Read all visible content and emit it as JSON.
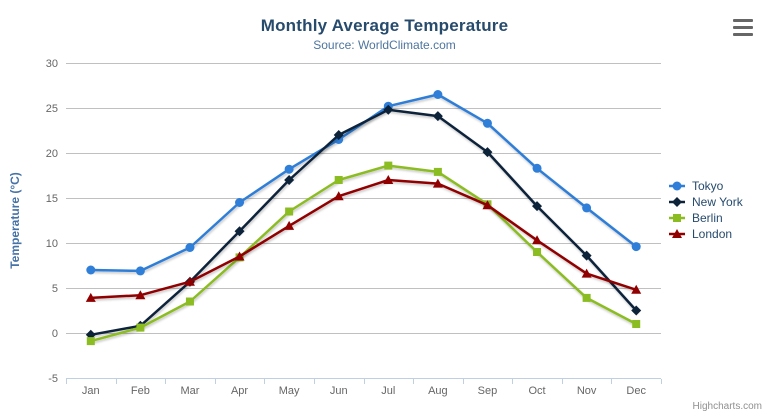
{
  "chart": {
    "title": "Monthly Average Temperature",
    "subtitle": "Source: WorldClimate.com",
    "credits": "Highcharts.com",
    "context_menu_icon": "hamburger-icon"
  },
  "chart_data": {
    "type": "line",
    "title": "Monthly Average Temperature",
    "subtitle": "Source: WorldClimate.com",
    "categories": [
      "Jan",
      "Feb",
      "Mar",
      "Apr",
      "May",
      "Jun",
      "Jul",
      "Aug",
      "Sep",
      "Oct",
      "Nov",
      "Dec"
    ],
    "series": [
      {
        "name": "Tokyo",
        "color": "#2f7ed8",
        "marker": "circle",
        "values": [
          7.0,
          6.9,
          9.5,
          14.5,
          18.2,
          21.5,
          25.2,
          26.5,
          23.3,
          18.3,
          13.9,
          9.6
        ]
      },
      {
        "name": "New York",
        "color": "#0d233a",
        "marker": "diamond",
        "values": [
          -0.2,
          0.8,
          5.7,
          11.3,
          17.0,
          22.0,
          24.8,
          24.1,
          20.1,
          14.1,
          8.6,
          2.5
        ]
      },
      {
        "name": "Berlin",
        "color": "#8bbc21",
        "marker": "square",
        "values": [
          -0.9,
          0.6,
          3.5,
          8.4,
          13.5,
          17.0,
          18.6,
          17.9,
          14.3,
          9.0,
          3.9,
          1.0
        ]
      },
      {
        "name": "London",
        "color": "#910000",
        "marker": "triangle",
        "values": [
          3.9,
          4.2,
          5.7,
          8.5,
          11.9,
          15.2,
          17.0,
          16.6,
          14.2,
          10.3,
          6.6,
          4.8
        ]
      }
    ],
    "xlabel": "",
    "ylabel": "Temperature (°C)",
    "ylim": [
      -5,
      30
    ],
    "ytick_step": 5,
    "grid": true,
    "legend_position": "right",
    "styles": {
      "grid_color": "#c0c0c0",
      "axis_line_color": "#c0d0e0",
      "axis_label_color": "#666666",
      "y_title_color": "#4572a7",
      "title_color": "#274b6d",
      "subtitle_color": "#4d759e",
      "legend_text_color": "#274b6d",
      "credits_color": "#909090"
    }
  }
}
